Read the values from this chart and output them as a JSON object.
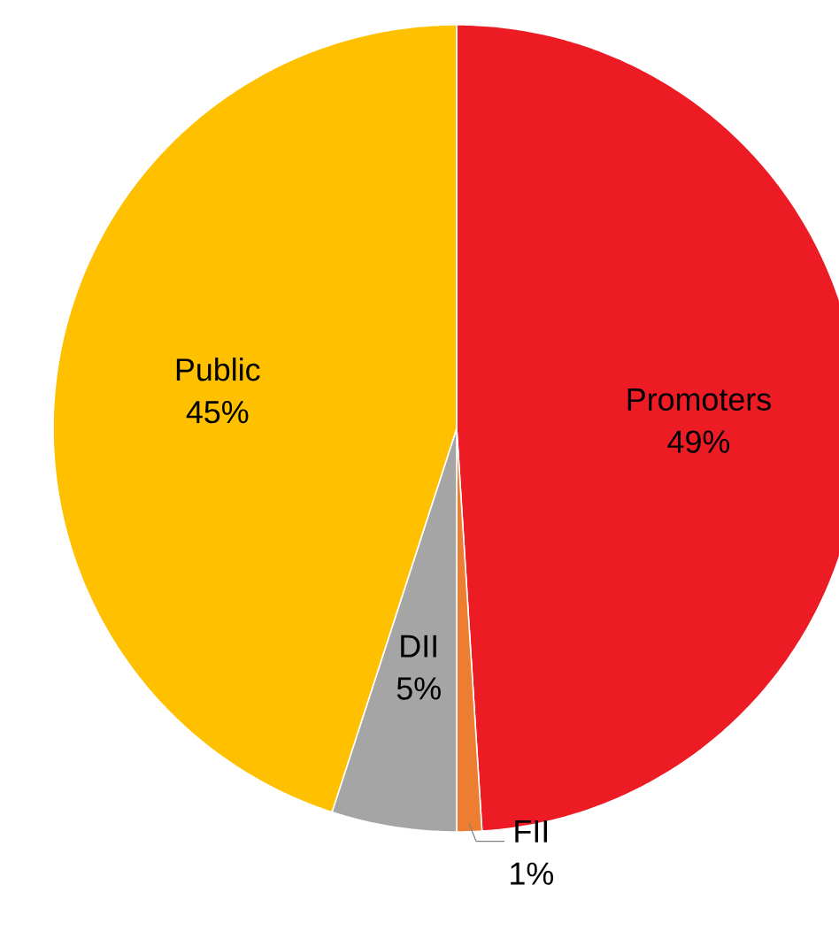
{
  "chart_data": {
    "type": "pie",
    "categories": [
      "Promoters",
      "FII",
      "DII",
      "Public"
    ],
    "values": [
      49,
      1,
      5,
      45
    ],
    "value_labels": [
      "49%",
      "1%",
      "5%",
      "45%"
    ],
    "colors": [
      "#ed1c24",
      "#ed7d31",
      "#a5a5a5",
      "#ffc000"
    ]
  }
}
